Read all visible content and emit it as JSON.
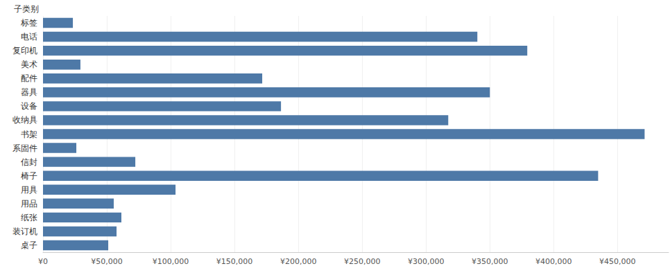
{
  "chart_data": {
    "type": "bar",
    "orientation": "horizontal",
    "ylabel": "子类别",
    "categories": [
      "标签",
      "电话",
      "复印机",
      "美术",
      "配件",
      "器具",
      "设备",
      "收纳具",
      "书架",
      "系固件",
      "信封",
      "椅子",
      "用具",
      "用品",
      "纸张",
      "装订机",
      "桌子"
    ],
    "values": [
      23400,
      340200,
      379300,
      29300,
      171700,
      350000,
      186400,
      317400,
      471200,
      26100,
      72300,
      434800,
      103800,
      55400,
      61400,
      57600,
      51100
    ],
    "color": "#4e79a7",
    "xlim": [
      0,
      490000
    ],
    "xticks": [
      {
        "value": 0,
        "label": "¥0"
      },
      {
        "value": 50000,
        "label": "¥50,000"
      },
      {
        "value": 100000,
        "label": "¥100,000"
      },
      {
        "value": 150000,
        "label": "¥150,000"
      },
      {
        "value": 200000,
        "label": "¥200,000"
      },
      {
        "value": 250000,
        "label": "¥250,000"
      },
      {
        "value": 300000,
        "label": "¥300,000"
      },
      {
        "value": 350000,
        "label": "¥350,000"
      },
      {
        "value": 400000,
        "label": "¥400,000"
      },
      {
        "value": 450000,
        "label": "¥450,000"
      }
    ],
    "grid": true
  }
}
